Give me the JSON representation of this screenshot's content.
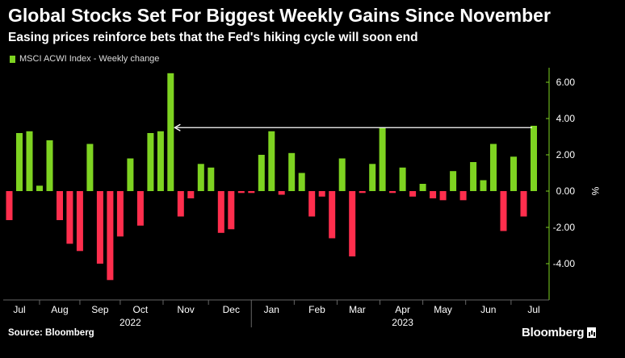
{
  "header": {
    "title": "Global Stocks Set For Biggest Weekly Gains Since November",
    "subtitle": "Easing prices reinforce bets that the Fed's hiking cycle will soon end"
  },
  "footer": {
    "source": "Source: Bloomberg",
    "brand": "Bloomberg"
  },
  "colors": {
    "positive": "#7ed321",
    "negative": "#ff2e4d",
    "background": "#000000",
    "axis": "#7ed321",
    "arrow": "#ffffff"
  },
  "chart_data": {
    "type": "bar",
    "series": [
      {
        "name": "MSCI ACWI Index - Weekly change",
        "values": [
          -1.6,
          3.2,
          3.3,
          0.3,
          2.8,
          -1.6,
          -2.9,
          -3.3,
          2.6,
          -4.0,
          -4.9,
          -2.5,
          1.8,
          -1.9,
          3.2,
          3.3,
          6.5,
          -1.4,
          -0.4,
          1.5,
          1.3,
          -2.3,
          -2.1,
          -0.1,
          -0.1,
          2.0,
          3.3,
          -0.2,
          2.1,
          1.0,
          -1.4,
          -0.3,
          -2.6,
          1.8,
          -3.6,
          -0.1,
          1.5,
          3.5,
          -0.1,
          1.3,
          -0.3,
          0.4,
          -0.4,
          -0.5,
          1.1,
          -0.5,
          1.6,
          0.6,
          2.6,
          -2.2,
          1.9,
          -1.4,
          3.6
        ]
      }
    ],
    "ylabel": "%",
    "ylim": [
      -6.0,
      6.8
    ],
    "y_ticks": [
      6.0,
      4.0,
      2.0,
      0.0,
      -2.0,
      -4.0
    ],
    "y_tick_labels": [
      "6.00",
      "4.00",
      "2.00",
      "0.00",
      "-2.00",
      "-4.00"
    ],
    "month_labels": [
      "Jul",
      "Aug",
      "Sep",
      "Oct",
      "Nov",
      "Dec",
      "Jan",
      "Feb",
      "Mar",
      "Apr",
      "May",
      "Jun",
      "Jul"
    ],
    "month_label_bar_index": [
      1,
      5,
      9,
      13,
      17.5,
      22,
      26,
      30.5,
      34.5,
      39,
      43,
      47.5,
      52
    ],
    "year_labels": [
      "2022",
      "2023"
    ],
    "year_label_bar_index": [
      12,
      39
    ],
    "annotation": {
      "type": "arrow",
      "value": 3.5,
      "from_bar": 52,
      "to_bar": 16
    },
    "grid": false,
    "legend_position": "top-left"
  }
}
